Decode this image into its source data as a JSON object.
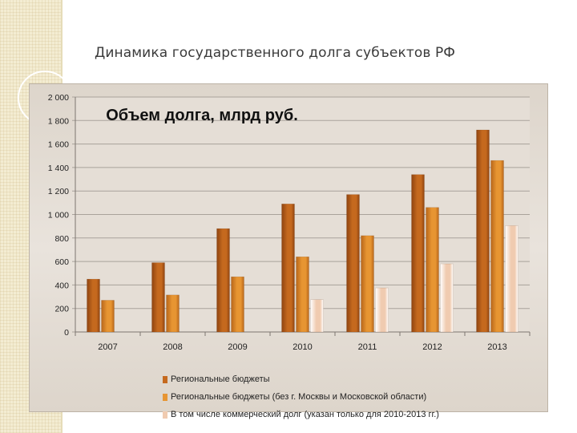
{
  "slide": {
    "title": "Динамика государственного долга субъектов РФ"
  },
  "colors": {
    "series1": "#c5691e",
    "series2": "#e79532",
    "series3": "#f0cbb0",
    "plot_bg": "#e5ded6",
    "grid": "#a9a29b"
  },
  "chart_data": {
    "type": "bar",
    "title": "Объем долга, млрд руб.",
    "categories": [
      "2007",
      "2008",
      "2009",
      "2010",
      "2011",
      "2012",
      "2013"
    ],
    "ylim": [
      0,
      2000
    ],
    "yticks": [
      "0",
      "200",
      "400",
      "600",
      "800",
      "1 000",
      "1 200",
      "1 400",
      "1 600",
      "1 800",
      "2 000"
    ],
    "ytick_values": [
      0,
      200,
      400,
      600,
      800,
      1000,
      1200,
      1400,
      1600,
      1800,
      2000
    ],
    "grid": true,
    "legend_position": "bottom",
    "series": [
      {
        "name": "Региональные бюджеты",
        "values": [
          450,
          590,
          880,
          1090,
          1170,
          1340,
          1720
        ]
      },
      {
        "name": "Региональные бюджеты (без г. Москвы и Московской области)",
        "values": [
          270,
          315,
          470,
          640,
          820,
          1060,
          1460
        ]
      },
      {
        "name": "В том числе коммерческий долг (указан только для 2010-2013 гг.)",
        "values": [
          null,
          null,
          null,
          275,
          375,
          580,
          905
        ]
      }
    ]
  }
}
